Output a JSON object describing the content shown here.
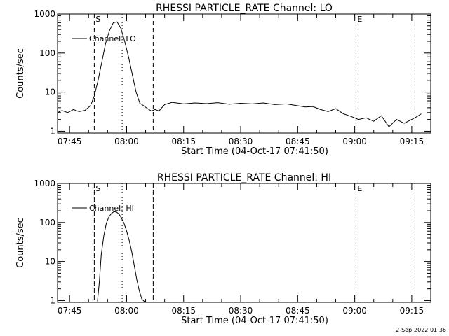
{
  "footer": {
    "timestamp": "2-Sep-2022 01:36"
  },
  "chart_data": [
    {
      "type": "line",
      "title": "RHESSI PARTICLE_RATE Channel: LO",
      "xlabel": "Start Time (04-Oct-17 07:41:50)",
      "ylabel": "Counts/sec",
      "y_scale": "log",
      "xlim": [
        "07:41:50",
        "09:20:00"
      ],
      "ylim": [
        0.9,
        1000
      ],
      "x_ticks": [
        "07:45",
        "08:00",
        "08:15",
        "08:30",
        "08:45",
        "09:00",
        "09:15"
      ],
      "y_ticks": [
        "1",
        "10",
        "100",
        "1000"
      ],
      "legend": {
        "position": "top-left",
        "entries": [
          "Channel: LO"
        ]
      },
      "markers": [
        {
          "label": "S",
          "time": "07:51:30",
          "style": "dashed"
        },
        {
          "label": "",
          "time": "07:58:50",
          "style": "dotted"
        },
        {
          "label": "",
          "time": "08:07:00",
          "style": "dashed"
        },
        {
          "label": "E",
          "time": "09:00:20",
          "style": "dotted"
        },
        {
          "label": "",
          "time": "09:15:50",
          "style": "dotted"
        }
      ],
      "series": [
        {
          "name": "Channel: LO",
          "x": [
            "07:41:50",
            "07:43:00",
            "07:44:30",
            "07:46:00",
            "07:47:30",
            "07:49:00",
            "07:50:30",
            "07:51:30",
            "07:52:30",
            "07:53:30",
            "07:54:30",
            "07:55:30",
            "07:56:30",
            "07:57:30",
            "07:58:30",
            "07:59:30",
            "08:00:30",
            "08:01:30",
            "08:02:30",
            "08:03:30",
            "08:04:30",
            "08:05:30",
            "08:06:30",
            "08:07:30",
            "08:08:30",
            "08:10:00",
            "08:12:00",
            "08:15:00",
            "08:18:00",
            "08:21:00",
            "08:24:00",
            "08:27:00",
            "08:30:00",
            "08:33:00",
            "08:36:00",
            "08:39:00",
            "08:42:00",
            "08:45:00",
            "08:47:00",
            "08:49:00",
            "08:51:00",
            "08:53:00",
            "08:55:00",
            "08:57:00",
            "08:59:00",
            "09:01:00",
            "09:03:00",
            "09:05:00",
            "09:07:00",
            "09:09:00",
            "09:11:00",
            "09:13:00",
            "09:15:00",
            "09:16:30",
            "09:17:30"
          ],
          "values": [
            3,
            3.4,
            3,
            3.6,
            3.2,
            3.4,
            4.5,
            8,
            20,
            60,
            180,
            380,
            600,
            630,
            430,
            200,
            80,
            28,
            10,
            5.2,
            4.5,
            3.8,
            3.3,
            3.6,
            3.3,
            4.8,
            5.5,
            5,
            5.3,
            5.1,
            5.4,
            4.9,
            5.2,
            5,
            5.3,
            4.8,
            5,
            4.5,
            4.2,
            4.3,
            3.6,
            3.2,
            3.8,
            2.8,
            2.4,
            2,
            2.2,
            1.8,
            2.5,
            1.3,
            2,
            1.6,
            2,
            2.4,
            2.8
          ]
        }
      ]
    },
    {
      "type": "line",
      "title": "RHESSI PARTICLE_RATE Channel: HI",
      "xlabel": "Start Time (04-Oct-17 07:41:50)",
      "ylabel": "Counts/sec",
      "y_scale": "log",
      "xlim": [
        "07:41:50",
        "09:20:00"
      ],
      "ylim": [
        0.9,
        1000
      ],
      "x_ticks": [
        "07:45",
        "08:00",
        "08:15",
        "08:30",
        "08:45",
        "09:00",
        "09:15"
      ],
      "y_ticks": [
        "1",
        "10",
        "100",
        "1000"
      ],
      "legend": {
        "position": "top-left",
        "entries": [
          "Channel: HI"
        ]
      },
      "markers": [
        {
          "label": "S",
          "time": "07:51:30",
          "style": "dashed"
        },
        {
          "label": "",
          "time": "07:58:50",
          "style": "dotted"
        },
        {
          "label": "",
          "time": "08:07:00",
          "style": "dashed"
        },
        {
          "label": "E",
          "time": "09:00:20",
          "style": "dotted"
        },
        {
          "label": "",
          "time": "09:15:50",
          "style": "dotted"
        }
      ],
      "series": [
        {
          "name": "Channel: HI",
          "x": [
            "07:52:20",
            "07:52:50",
            "07:53:20",
            "07:54:00",
            "07:54:40",
            "07:55:20",
            "07:56:00",
            "07:56:40",
            "07:57:20",
            "07:58:00",
            "07:58:40",
            "07:59:20",
            "08:00:00",
            "08:00:40",
            "08:01:20",
            "08:02:00",
            "08:02:40",
            "08:03:20",
            "08:04:00",
            "08:04:40",
            "08:05:00"
          ],
          "values": [
            0.95,
            3,
            15,
            45,
            95,
            140,
            170,
            190,
            185,
            165,
            130,
            95,
            60,
            35,
            18,
            8,
            3.5,
            1.8,
            1.1,
            0.95,
            0.9
          ]
        }
      ]
    }
  ]
}
